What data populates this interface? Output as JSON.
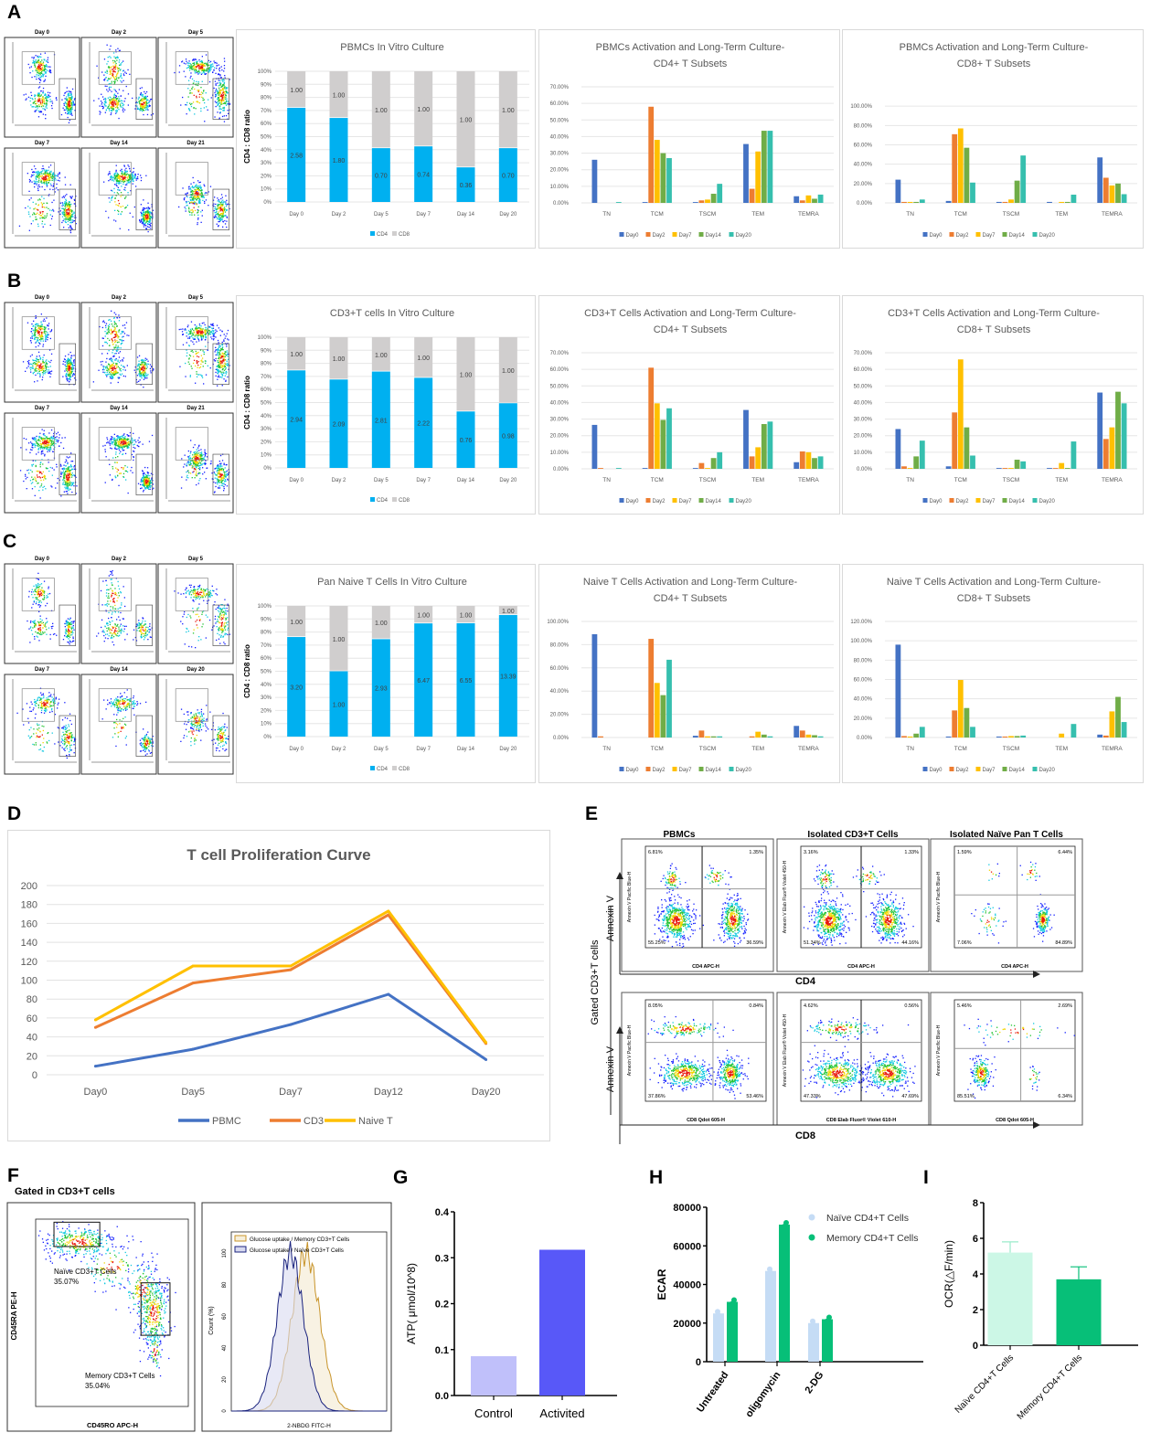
{
  "panel_letters": [
    "A",
    "B",
    "C",
    "D",
    "E",
    "F",
    "G",
    "H",
    "I"
  ],
  "rows": [
    {
      "flow_days": [
        "Day 0",
        "Day 2",
        "Day 5",
        "Day 7",
        "Day 14",
        "Day 21"
      ]
    },
    {
      "flow_days": [
        "Day 0",
        "Day 2",
        "Day 5",
        "Day 7",
        "Day 14",
        "Day 21"
      ]
    },
    {
      "flow_days": [
        "Day 0",
        "Day 2",
        "Day 5",
        "Day 7",
        "Day 14",
        "Day 20"
      ]
    }
  ],
  "colors": {
    "cd4": "#00B0F0",
    "cd8": "#D0CECE",
    "day0": "#4472C4",
    "day2": "#ED7D31",
    "day7": "#FFC000",
    "day14": "#70AD47",
    "day20": "#36BFAE"
  },
  "chart_data": [
    {
      "type": "bar",
      "stacked": true,
      "title": "PBMCs In Vitro Culture",
      "ylabel": "CD4 : CD8 ratio",
      "ylim": [
        0,
        100
      ],
      "categories": [
        "Day 0",
        "Day 2",
        "Day 5",
        "Day 7",
        "Day 14",
        "Day 20"
      ],
      "ytick_labels": [
        "0%",
        "10%",
        "20%",
        "30%",
        "40%",
        "50%",
        "60%",
        "70%",
        "80%",
        "90%",
        "100%"
      ],
      "series": [
        {
          "name": "CD4",
          "color": "#00B0F0",
          "ratio_labels": [
            "2.58",
            "1.80",
            "0.70",
            "0.74",
            "0.36",
            "0.70"
          ]
        },
        {
          "name": "CD8",
          "color": "#D0CECE",
          "ratio_labels": [
            "1.00",
            "1.00",
            "1.00",
            "1.00",
            "1.00",
            "1.00"
          ]
        }
      ]
    },
    {
      "type": "bar",
      "title_lines": [
        "PBMCs Activation and Long-Term Culture-",
        "CD4+ T Subsets"
      ],
      "ylim": [
        0,
        70
      ],
      "categories": [
        "TN",
        "TCM",
        "TSCM",
        "TEM",
        "TEMRA"
      ],
      "ytick_labels": [
        "0.00%",
        "10.00%",
        "20.00%",
        "30.00%",
        "40.00%",
        "50.00%",
        "60.00%",
        "70.00%"
      ],
      "series": [
        {
          "name": "Day0",
          "color": "#4472C4",
          "values": [
            26,
            0.5,
            0.5,
            35.5,
            4
          ]
        },
        {
          "name": "Day2",
          "color": "#ED7D31",
          "values": [
            0,
            58,
            1.5,
            8.5,
            1.5
          ]
        },
        {
          "name": "Day7",
          "color": "#FFC000",
          "values": [
            0,
            38,
            2,
            31,
            4.5
          ]
        },
        {
          "name": "Day14",
          "color": "#70AD47",
          "values": [
            0,
            30,
            5.5,
            43.5,
            2.5
          ]
        },
        {
          "name": "Day20",
          "color": "#36BFAE",
          "values": [
            0.5,
            27,
            11.5,
            43.5,
            5
          ]
        }
      ]
    },
    {
      "type": "bar",
      "title_lines": [
        "PBMCs Activation and Long-Term Culture-",
        "CD8+ T Subsets"
      ],
      "ylim": [
        0,
        120
      ],
      "categories": [
        "TN",
        "TCM",
        "TSCM",
        "TEM",
        "TEMRA"
      ],
      "ytick_labels": [
        "0.00%",
        "20.00%",
        "40.00%",
        "60.00%",
        "80.00%",
        "100.00%"
      ],
      "series": [
        {
          "name": "Day0",
          "color": "#4472C4",
          "values": [
            24,
            2,
            1,
            1,
            47
          ]
        },
        {
          "name": "Day2",
          "color": "#ED7D31",
          "values": [
            1,
            71,
            1,
            0,
            26
          ]
        },
        {
          "name": "Day7",
          "color": "#FFC000",
          "values": [
            1,
            77,
            3.5,
            1,
            18
          ]
        },
        {
          "name": "Day14",
          "color": "#70AD47",
          "values": [
            1,
            57,
            23,
            1,
            20
          ]
        },
        {
          "name": "Day20",
          "color": "#36BFAE",
          "values": [
            3.5,
            21,
            49,
            8.5,
            9
          ]
        }
      ]
    },
    {
      "type": "bar",
      "stacked": true,
      "title": "CD3+T cells In Vitro Culture",
      "ylabel": "CD4 : CD8 ratio",
      "ylim": [
        0,
        100
      ],
      "categories": [
        "Day 0",
        "Day 2",
        "Day 5",
        "Day 7",
        "Day 14",
        "Day 20"
      ],
      "ytick_labels": [
        "0%",
        "10%",
        "20%",
        "30%",
        "40%",
        "50%",
        "60%",
        "70%",
        "80%",
        "90%",
        "100%"
      ],
      "series": [
        {
          "name": "CD4",
          "color": "#00B0F0",
          "ratio_labels": [
            "2.94",
            "2.09",
            "2.81",
            "2.22",
            "0.76",
            "0.98"
          ]
        },
        {
          "name": "CD8",
          "color": "#D0CECE",
          "ratio_labels": [
            "1.00",
            "1.00",
            "1.00",
            "1.00",
            "1.00",
            "1.00"
          ]
        }
      ]
    },
    {
      "type": "bar",
      "title_lines": [
        "CD3+T Cells Activation and Long-Term Culture-",
        "CD4+ T Subsets"
      ],
      "ylim": [
        0,
        70
      ],
      "categories": [
        "TN",
        "TCM",
        "TSCM",
        "TEM",
        "TEMRA"
      ],
      "ytick_labels": [
        "0.00%",
        "10.00%",
        "20.00%",
        "30.00%",
        "40.00%",
        "50.00%",
        "60.00%",
        "70.00%"
      ],
      "series": [
        {
          "name": "Day0",
          "color": "#4472C4",
          "values": [
            26.5,
            0.5,
            0.5,
            35.5,
            4
          ]
        },
        {
          "name": "Day2",
          "color": "#ED7D31",
          "values": [
            0.5,
            61,
            3.5,
            7.5,
            10.5
          ]
        },
        {
          "name": "Day7",
          "color": "#FFC000",
          "values": [
            0,
            39.5,
            0.5,
            13,
            10
          ]
        },
        {
          "name": "Day14",
          "color": "#70AD47",
          "values": [
            0,
            29.5,
            6.5,
            27,
            6.5
          ]
        },
        {
          "name": "Day20",
          "color": "#36BFAE",
          "values": [
            0.5,
            36.5,
            10,
            28.5,
            7.5
          ]
        }
      ]
    },
    {
      "type": "bar",
      "title_lines": [
        "CD3+T Cells Activation and Long-Term Culture-",
        "CD8+ T Subsets"
      ],
      "ylim": [
        0,
        70
      ],
      "categories": [
        "TN",
        "TCM",
        "TSCM",
        "TEM",
        "TEMRA"
      ],
      "ytick_labels": [
        "0.00%",
        "10.00%",
        "20.00%",
        "30.00%",
        "40.00%",
        "50.00%",
        "60.00%",
        "70.00%"
      ],
      "series": [
        {
          "name": "Day0",
          "color": "#4472C4",
          "values": [
            24,
            1.5,
            0.5,
            0.5,
            46
          ]
        },
        {
          "name": "Day2",
          "color": "#ED7D31",
          "values": [
            1.5,
            34,
            0.5,
            0.5,
            18
          ]
        },
        {
          "name": "Day7",
          "color": "#FFC000",
          "values": [
            0.5,
            66,
            0.5,
            3.5,
            25
          ]
        },
        {
          "name": "Day14",
          "color": "#70AD47",
          "values": [
            7.5,
            25,
            5.5,
            0.5,
            46.5
          ]
        },
        {
          "name": "Day20",
          "color": "#36BFAE",
          "values": [
            17,
            8,
            4.5,
            16.5,
            39.5
          ]
        }
      ]
    },
    {
      "type": "bar",
      "stacked": true,
      "title": "Pan Naive T Cells In Vitro Culture",
      "ylabel": "CD4 : CD8 ratio",
      "ylim": [
        0,
        100
      ],
      "categories": [
        "Day 0",
        "Day 2",
        "Day 5",
        "Day 7",
        "Day 14",
        "Day 20"
      ],
      "ytick_labels": [
        "0%",
        "10%",
        "20%",
        "30%",
        "40%",
        "50%",
        "60%",
        "70%",
        "80%",
        "90%",
        "100%"
      ],
      "series": [
        {
          "name": "CD4",
          "color": "#00B0F0",
          "ratio_labels": [
            "3.20",
            "1.00",
            "2.93",
            "6.47",
            "6.55",
            "13.39"
          ]
        },
        {
          "name": "CD8",
          "color": "#D0CECE",
          "ratio_labels": [
            "1.00",
            "1.00",
            "1.00",
            "1.00",
            "1.00",
            "1.00"
          ]
        }
      ]
    },
    {
      "type": "bar",
      "title_lines": [
        "Naive T Cells Activation and Long-Term Culture-",
        "CD4+ T Subsets"
      ],
      "ylim": [
        0,
        100
      ],
      "categories": [
        "TN",
        "TCM",
        "TSCM",
        "TEM",
        "TEMRA"
      ],
      "ytick_labels": [
        "0.00%",
        "20.00%",
        "40.00%",
        "60.00%",
        "80.00%",
        "100.00%"
      ],
      "series": [
        {
          "name": "Day0",
          "color": "#4472C4",
          "values": [
            89,
            0,
            1.5,
            0,
            10
          ]
        },
        {
          "name": "Day2",
          "color": "#ED7D31",
          "values": [
            1,
            85,
            6,
            1,
            6
          ]
        },
        {
          "name": "Day7",
          "color": "#FFC000",
          "values": [
            0,
            47,
            1,
            5,
            2.5
          ]
        },
        {
          "name": "Day14",
          "color": "#70AD47",
          "values": [
            0,
            36.5,
            1,
            2.5,
            2
          ]
        },
        {
          "name": "Day20",
          "color": "#36BFAE",
          "values": [
            0,
            67,
            1,
            1,
            1
          ]
        }
      ]
    },
    {
      "type": "bar",
      "title_lines": [
        "Naive T Cells Activation and Long-Term Culture-",
        "CD8+ T Subsets"
      ],
      "ylim": [
        0,
        120
      ],
      "categories": [
        "TN",
        "TCM",
        "TSCM",
        "TEM",
        "TEMRA"
      ],
      "ytick_labels": [
        "0.00%",
        "20.00%",
        "40.00%",
        "60.00%",
        "80.00%",
        "100.00%",
        "120.00%"
      ],
      "series": [
        {
          "name": "Day0",
          "color": "#4472C4",
          "values": [
            96,
            1,
            1,
            0,
            3
          ]
        },
        {
          "name": "Day2",
          "color": "#ED7D31",
          "values": [
            1.5,
            28,
            1,
            0,
            2
          ]
        },
        {
          "name": "Day7",
          "color": "#FFC000",
          "values": [
            1,
            59.5,
            1.5,
            4,
            27
          ]
        },
        {
          "name": "Day14",
          "color": "#70AD47",
          "values": [
            4,
            30.5,
            1.5,
            0,
            42
          ]
        },
        {
          "name": "Day20",
          "color": "#36BFAE",
          "values": [
            11,
            11,
            2,
            14,
            16
          ]
        }
      ]
    },
    {
      "type": "line",
      "title": "T cell Proliferation Curve",
      "ylim": [
        0,
        200
      ],
      "categories": [
        "Day0",
        "Day5",
        "Day7",
        "Day12",
        "Day20"
      ],
      "ytick_labels": [
        "0",
        "20",
        "40",
        "60",
        "80",
        "100",
        "120",
        "140",
        "160",
        "180",
        "200"
      ],
      "legend": "bottom",
      "grid": true,
      "series": [
        {
          "name": "PBMC",
          "color": "#4472C4",
          "values": [
            9,
            27,
            53,
            85,
            16
          ]
        },
        {
          "name": "CD3",
          "color": "#ED7D31",
          "values": [
            50,
            97,
            111,
            169,
            33
          ]
        },
        {
          "name": "Naive T",
          "color": "#FFC000",
          "values": [
            58,
            115,
            115,
            173,
            34
          ]
        }
      ]
    },
    {
      "type": "bar",
      "ylabel": "ATP( μmol/10^8)",
      "ylim": [
        0,
        0.4
      ],
      "categories": [
        "Control",
        "Activited"
      ],
      "ytick_labels": [
        "0.0",
        "0.1",
        "0.2",
        "0.3",
        "0.4"
      ],
      "values": [
        0.083,
        0.315
      ],
      "colors": [
        "#C0C0FA",
        "#5858F8"
      ]
    },
    {
      "type": "bar",
      "ylabel": "ECAR",
      "ylim": [
        0,
        80000
      ],
      "categories": [
        "Untreated",
        "oligomycin",
        "2-DG"
      ],
      "ytick_labels": [
        "0",
        "20000",
        "40000",
        "60000",
        "80000"
      ],
      "series": [
        {
          "name": "Naïve CD4+T Cells",
          "color": "#C5DCF5",
          "values": [
            25000,
            47000,
            20000
          ]
        },
        {
          "name": "Memory CD4+T Cells",
          "color": "#07BF78",
          "values": [
            31000,
            71000,
            22000
          ]
        }
      ]
    },
    {
      "type": "bar",
      "ylabel": "OCR(△F/min)",
      "ylim": [
        0,
        8
      ],
      "categories": [
        "Naïve CD4+T Cells",
        "Memory CD4+T Cells"
      ],
      "ytick_labels": [
        "0",
        "2",
        "4",
        "6",
        "8"
      ],
      "values": [
        5.2,
        3.7
      ],
      "errors": [
        0.6,
        0.7
      ],
      "colors": [
        "#CCF7E6",
        "#07BF78"
      ]
    }
  ],
  "panel_e": {
    "columns": [
      "PBMCs",
      "Isolated CD3+T Cells",
      "Isolated Naïve Pan T Cells"
    ],
    "gated_label": "Gated CD3+T cells",
    "annexin_label": "Annexin V",
    "cd4_label": "CD4",
    "cd8_label": "CD8",
    "row1": {
      "xlabels": [
        "CD4 APC-H",
        "CD4 APC-H",
        "CD4 APC-H"
      ],
      "ylabels": [
        "Annexin V Pacific Blue-H",
        "Annexin V Elab Fluor® Violet 450-H",
        "Annexin V Pacific Blue-H"
      ],
      "quadrants": [
        [
          "6.81%",
          "1.35%",
          "55.25%",
          "36.59%"
        ],
        [
          "3.16%",
          "1.33%",
          "51.34%",
          "44.16%"
        ],
        [
          "1.59%",
          "6.44%",
          "7.06%",
          "84.89%"
        ]
      ]
    },
    "row2": {
      "xlabels": [
        "CD8 Qdot 605-H",
        "CD8 Elab Fluor® Violet 610-H",
        "CD8 Qdot 605-H"
      ],
      "ylabels": [
        "Annexin V Pacific Blue-H",
        "Annexin V Elab Fluor® Violet 450-H",
        "Annexin V Pacific Blue-H"
      ],
      "quadrants": [
        [
          "8.05%",
          "0.84%",
          "37.86%",
          "53.46%"
        ],
        [
          "4.62%",
          "0.56%",
          "47.33%",
          "47.69%"
        ],
        [
          "5.46%",
          "2.69%",
          "85.51%",
          "6.34%"
        ]
      ]
    }
  },
  "panel_f": {
    "heading": "Gated in CD3+T cells",
    "naive_gate": "Naïve CD3+T Cells",
    "naive_pct": "35.07%",
    "memory_gate": "Memory CD3+T Cells",
    "memory_pct": "35.04%",
    "ylabel": "CD45RA PE-H",
    "xlabel": "CD45RO APC-H",
    "hist_legend": [
      "Glucose uptake / Memory CD3+T Cells",
      "Glucose uptake / Naïve CD3+T Cells"
    ],
    "hist_ylabel": "Count (%)",
    "hist_xlabel": "2-NBDG FITC-H",
    "hist_yticks": [
      "0",
      "20",
      "40",
      "60",
      "80",
      "100"
    ]
  }
}
